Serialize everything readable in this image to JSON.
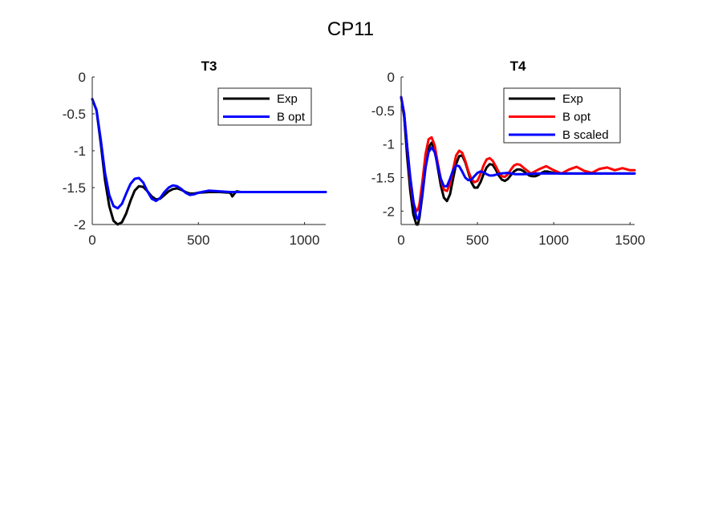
{
  "figure_title": "CP11",
  "chart_data": [
    {
      "type": "line",
      "title": "T3",
      "xlabel": "",
      "ylabel": "",
      "xlim": [
        0,
        1100
      ],
      "ylim": [
        -2,
        0
      ],
      "xticks": [
        0,
        500,
        1000
      ],
      "yticks": [
        0,
        -0.5,
        -1,
        -1.5,
        -2
      ],
      "xtick_labels": [
        "0",
        "500",
        "1000"
      ],
      "ytick_labels": [
        "0",
        "-0.5",
        "-1",
        "-1.5",
        "-2"
      ],
      "legend_position": "top-right",
      "series": [
        {
          "name": "Exp",
          "color": "#000000",
          "x": [
            0,
            20,
            40,
            60,
            80,
            100,
            120,
            140,
            160,
            180,
            200,
            220,
            240,
            260,
            280,
            300,
            320,
            340,
            360,
            380,
            400,
            420,
            440,
            460,
            480,
            500,
            550,
            600,
            650,
            660,
            670,
            680,
            700,
            750,
            800,
            900,
            1000,
            1100
          ],
          "y": [
            -0.3,
            -0.45,
            -0.9,
            -1.4,
            -1.75,
            -1.95,
            -2.0,
            -1.97,
            -1.85,
            -1.68,
            -1.54,
            -1.48,
            -1.49,
            -1.55,
            -1.62,
            -1.66,
            -1.65,
            -1.6,
            -1.55,
            -1.52,
            -1.51,
            -1.53,
            -1.56,
            -1.58,
            -1.58,
            -1.57,
            -1.56,
            -1.56,
            -1.57,
            -1.62,
            -1.58,
            -1.55,
            -1.56,
            -1.56,
            -1.56,
            -1.56,
            -1.56,
            -1.56
          ]
        },
        {
          "name": "B opt",
          "color": "#0000ff",
          "x": [
            0,
            20,
            40,
            60,
            80,
            100,
            120,
            140,
            160,
            180,
            200,
            220,
            240,
            260,
            280,
            300,
            320,
            340,
            360,
            380,
            400,
            420,
            440,
            460,
            480,
            500,
            550,
            600,
            650,
            700,
            750,
            800,
            900,
            1000,
            1100
          ],
          "y": [
            -0.3,
            -0.45,
            -0.85,
            -1.3,
            -1.6,
            -1.75,
            -1.78,
            -1.72,
            -1.58,
            -1.45,
            -1.38,
            -1.37,
            -1.43,
            -1.55,
            -1.65,
            -1.68,
            -1.64,
            -1.56,
            -1.5,
            -1.47,
            -1.48,
            -1.52,
            -1.57,
            -1.6,
            -1.59,
            -1.57,
            -1.54,
            -1.55,
            -1.56,
            -1.56,
            -1.56,
            -1.56,
            -1.56,
            -1.56,
            -1.56
          ]
        }
      ]
    },
    {
      "type": "line",
      "title": "T4",
      "xlabel": "",
      "ylabel": "",
      "xlim": [
        0,
        1530
      ],
      "ylim": [
        -2.2,
        0
      ],
      "xticks": [
        0,
        500,
        1000,
        1500
      ],
      "yticks": [
        0,
        -0.5,
        -1,
        -1.5,
        -2
      ],
      "xtick_labels": [
        "0",
        "500",
        "1000",
        "1500"
      ],
      "ytick_labels": [
        "0",
        "-0.5",
        "-1",
        "-1.5",
        "-2"
      ],
      "legend_position": "top-right",
      "series": [
        {
          "name": "Exp",
          "color": "#000000",
          "x": [
            0,
            20,
            40,
            60,
            80,
            100,
            110,
            120,
            140,
            160,
            180,
            200,
            220,
            240,
            260,
            280,
            300,
            320,
            340,
            360,
            380,
            400,
            420,
            440,
            460,
            480,
            500,
            520,
            540,
            560,
            580,
            600,
            620,
            640,
            660,
            680,
            700,
            720,
            740,
            760,
            780,
            800,
            820,
            840,
            860,
            880,
            900,
            920,
            940,
            960,
            980,
            1000,
            1050,
            1100,
            1200,
            1300,
            1400,
            1530
          ],
          "y": [
            -0.3,
            -0.6,
            -1.2,
            -1.7,
            -2.05,
            -2.2,
            -2.2,
            -2.1,
            -1.75,
            -1.35,
            -1.05,
            -0.98,
            -1.08,
            -1.35,
            -1.62,
            -1.8,
            -1.85,
            -1.75,
            -1.52,
            -1.3,
            -1.18,
            -1.17,
            -1.27,
            -1.42,
            -1.57,
            -1.65,
            -1.65,
            -1.57,
            -1.45,
            -1.35,
            -1.3,
            -1.31,
            -1.38,
            -1.47,
            -1.53,
            -1.55,
            -1.52,
            -1.46,
            -1.41,
            -1.38,
            -1.38,
            -1.4,
            -1.44,
            -1.47,
            -1.48,
            -1.48,
            -1.46,
            -1.43,
            -1.41,
            -1.41,
            -1.42,
            -1.43,
            -1.44,
            -1.44,
            -1.44,
            -1.44,
            -1.44,
            -1.44
          ]
        },
        {
          "name": "B opt",
          "color": "#ff0000",
          "x": [
            0,
            20,
            40,
            60,
            80,
            100,
            110,
            120,
            140,
            160,
            180,
            200,
            220,
            240,
            260,
            280,
            300,
            320,
            340,
            360,
            380,
            400,
            420,
            440,
            460,
            480,
            500,
            520,
            540,
            560,
            580,
            600,
            620,
            640,
            660,
            680,
            700,
            720,
            740,
            760,
            780,
            800,
            850,
            900,
            950,
            1000,
            1050,
            1100,
            1150,
            1200,
            1250,
            1300,
            1350,
            1400,
            1450,
            1500,
            1530
          ],
          "y": [
            -0.3,
            -0.55,
            -1.05,
            -1.55,
            -1.88,
            -2.0,
            -1.98,
            -1.9,
            -1.55,
            -1.15,
            -0.93,
            -0.9,
            -1.02,
            -1.28,
            -1.53,
            -1.68,
            -1.7,
            -1.6,
            -1.38,
            -1.17,
            -1.1,
            -1.13,
            -1.25,
            -1.4,
            -1.52,
            -1.57,
            -1.55,
            -1.45,
            -1.32,
            -1.23,
            -1.21,
            -1.25,
            -1.33,
            -1.42,
            -1.48,
            -1.49,
            -1.45,
            -1.38,
            -1.32,
            -1.3,
            -1.31,
            -1.35,
            -1.44,
            -1.38,
            -1.33,
            -1.39,
            -1.44,
            -1.38,
            -1.34,
            -1.4,
            -1.43,
            -1.37,
            -1.35,
            -1.39,
            -1.36,
            -1.39,
            -1.39
          ]
        },
        {
          "name": "B scaled",
          "color": "#0000ff",
          "x": [
            0,
            20,
            40,
            60,
            80,
            100,
            110,
            120,
            140,
            160,
            180,
            200,
            220,
            240,
            260,
            280,
            300,
            320,
            340,
            360,
            380,
            400,
            420,
            440,
            460,
            480,
            500,
            520,
            540,
            560,
            580,
            600,
            650,
            700,
            750,
            800,
            900,
            1000,
            1100,
            1200,
            1300,
            1400,
            1530
          ],
          "y": [
            -0.3,
            -0.55,
            -1.05,
            -1.5,
            -1.85,
            -2.1,
            -2.12,
            -2.05,
            -1.7,
            -1.35,
            -1.12,
            -1.05,
            -1.12,
            -1.32,
            -1.52,
            -1.63,
            -1.63,
            -1.52,
            -1.39,
            -1.32,
            -1.33,
            -1.41,
            -1.5,
            -1.54,
            -1.53,
            -1.48,
            -1.43,
            -1.41,
            -1.42,
            -1.45,
            -1.47,
            -1.47,
            -1.44,
            -1.43,
            -1.45,
            -1.45,
            -1.44,
            -1.44,
            -1.44,
            -1.44,
            -1.44,
            -1.44,
            -1.44
          ]
        }
      ]
    }
  ]
}
